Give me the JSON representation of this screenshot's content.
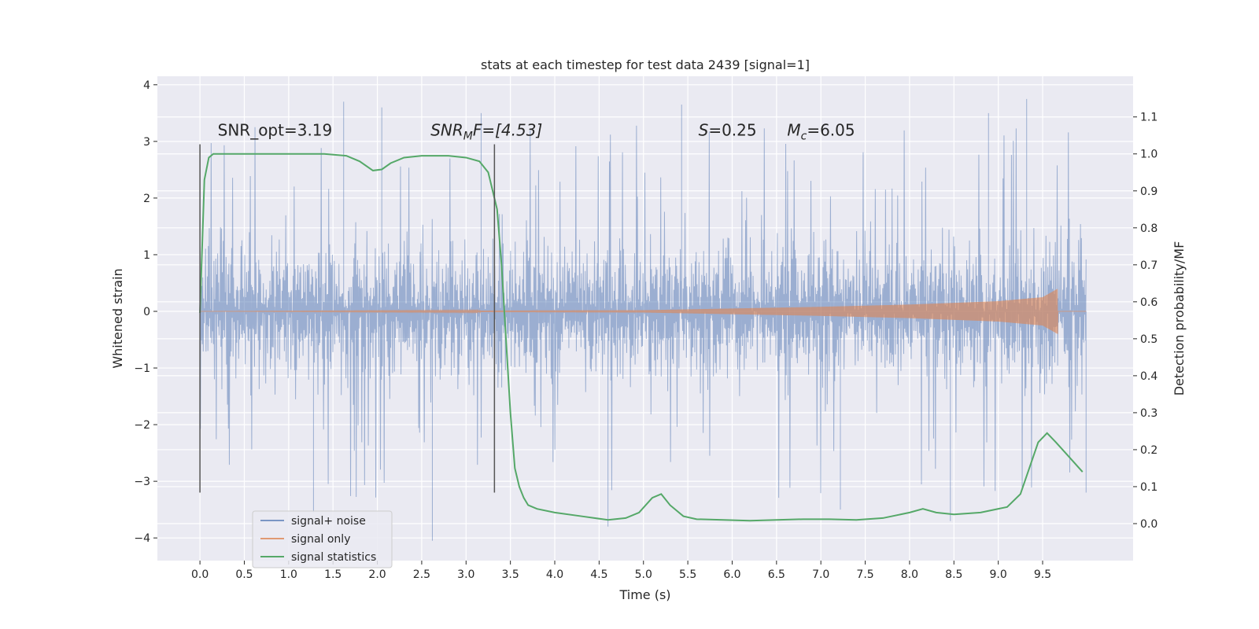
{
  "chart_data": {
    "type": "line",
    "title": "stats at each timestep for test data 2439 [signal=1]",
    "xlabel": "Time (s)",
    "ylabel": "Whitened strain",
    "y2label": "Detection probability/MF",
    "xlim": [
      -0.48,
      10.52
    ],
    "ylim": [
      -4.4,
      4.15
    ],
    "y2lim": [
      -0.1,
      1.21
    ],
    "xticks": [
      0.0,
      0.5,
      1.0,
      1.5,
      2.0,
      2.5,
      3.0,
      3.5,
      4.0,
      4.5,
      5.0,
      5.5,
      6.0,
      6.5,
      7.0,
      7.5,
      8.0,
      8.5,
      9.0,
      9.5
    ],
    "xtick_labels": [
      "0.0",
      "0.5",
      "1.0",
      "1.5",
      "2.0",
      "2.5",
      "3.0",
      "3.5",
      "4.0",
      "4.5",
      "5.0",
      "5.5",
      "6.0",
      "6.5",
      "7.0",
      "7.5",
      "8.0",
      "8.5",
      "9.0",
      "9.5"
    ],
    "yticks": [
      -4,
      -3,
      -2,
      -1,
      0,
      1,
      2,
      3,
      4
    ],
    "ytick_labels": [
      "−4",
      "−3",
      "−2",
      "−1",
      "0",
      "1",
      "2",
      "3",
      "4"
    ],
    "y2ticks": [
      0.0,
      0.1,
      0.2,
      0.3,
      0.4,
      0.5,
      0.6,
      0.7,
      0.8,
      0.9,
      1.0,
      1.1
    ],
    "y2tick_labels": [
      "0.0",
      "0.1",
      "0.2",
      "0.3",
      "0.4",
      "0.5",
      "0.6",
      "0.7",
      "0.8",
      "0.9",
      "1.0",
      "1.1"
    ],
    "grid": true,
    "legend_position": "bottom-left",
    "series": [
      {
        "name": "signal+ noise",
        "color": "#4c72b0",
        "axis": "left",
        "description": "noisy whitened strain, roughly within ±2.5 with spikes to about ±4",
        "x_range": [
          0.0,
          9.99
        ],
        "typical_amplitude": 1.7,
        "peak_max": 3.8,
        "peak_min": -4.05,
        "spikes": [
          {
            "x": 1.62,
            "y": 3.7
          },
          {
            "x": 2.05,
            "y": 3.6
          },
          {
            "x": 3.17,
            "y": 3.5
          },
          {
            "x": 5.43,
            "y": 3.65
          },
          {
            "x": 9.32,
            "y": 3.75
          },
          {
            "x": 8.89,
            "y": 3.5
          },
          {
            "x": 2.62,
            "y": -4.05
          },
          {
            "x": 4.6,
            "y": -3.8
          },
          {
            "x": 8.46,
            "y": -3.7
          },
          {
            "x": 1.28,
            "y": -3.55
          },
          {
            "x": 7.22,
            "y": -3.5
          },
          {
            "x": 9.99,
            "y": -3.2
          }
        ]
      },
      {
        "name": "signal only",
        "color": "#dd8452",
        "axis": "left",
        "description": "chirp signal growing in amplitude until merger near 9.67 s",
        "x_range": [
          0.0,
          9.99
        ],
        "envelope": [
          {
            "x": 0.0,
            "amp": 0.0
          },
          {
            "x": 5.0,
            "amp": 0.02
          },
          {
            "x": 6.0,
            "amp": 0.05
          },
          {
            "x": 7.0,
            "amp": 0.08
          },
          {
            "x": 8.0,
            "amp": 0.12
          },
          {
            "x": 9.0,
            "amp": 0.18
          },
          {
            "x": 9.5,
            "amp": 0.25
          },
          {
            "x": 9.67,
            "amp": 0.4
          }
        ],
        "end_x": 9.67
      },
      {
        "name": "signal statistics",
        "color": "#55a868",
        "axis": "right",
        "x": [
          0.0,
          0.05,
          0.1,
          0.15,
          0.3,
          0.6,
          1.0,
          1.4,
          1.65,
          1.8,
          1.95,
          2.05,
          2.15,
          2.3,
          2.5,
          2.8,
          3.0,
          3.15,
          3.25,
          3.3,
          3.35,
          3.4,
          3.45,
          3.5,
          3.55,
          3.6,
          3.65,
          3.7,
          3.8,
          4.0,
          4.3,
          4.6,
          4.8,
          4.95,
          5.1,
          5.2,
          5.3,
          5.45,
          5.6,
          5.9,
          6.2,
          6.5,
          6.8,
          7.1,
          7.4,
          7.7,
          8.0,
          8.15,
          8.3,
          8.5,
          8.8,
          9.1,
          9.25,
          9.35,
          9.45,
          9.55,
          9.65,
          9.8,
          9.95
        ],
        "values": [
          0.57,
          0.93,
          0.99,
          1.0,
          1.0,
          1.0,
          1.0,
          1.0,
          0.995,
          0.98,
          0.955,
          0.958,
          0.975,
          0.99,
          0.995,
          0.995,
          0.99,
          0.98,
          0.95,
          0.9,
          0.85,
          0.7,
          0.5,
          0.3,
          0.15,
          0.1,
          0.07,
          0.05,
          0.04,
          0.03,
          0.02,
          0.01,
          0.015,
          0.03,
          0.07,
          0.08,
          0.05,
          0.02,
          0.012,
          0.01,
          0.008,
          0.01,
          0.012,
          0.012,
          0.01,
          0.015,
          0.03,
          0.04,
          0.03,
          0.025,
          0.03,
          0.045,
          0.08,
          0.15,
          0.22,
          0.245,
          0.22,
          0.18,
          0.14
        ]
      }
    ],
    "vertical_lines": [
      0.0,
      3.32
    ],
    "annotations": [
      {
        "text": "SNR_opt=3.19",
        "x": 0.2,
        "y": 3.1
      },
      {
        "base": "SNR",
        "sub": "M",
        "rest": "F=[4.53]",
        "x": 2.6,
        "y": 3.1
      },
      {
        "base": "S",
        "rest": "=0.25",
        "x": 5.62,
        "y": 3.1
      },
      {
        "base": "M",
        "sub": "c",
        "rest": "=6.05",
        "x": 6.62,
        "y": 3.1
      }
    ]
  }
}
